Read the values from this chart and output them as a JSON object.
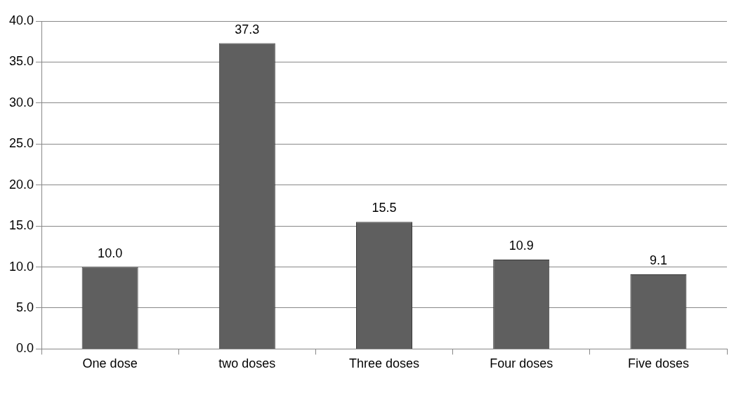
{
  "chart_data": {
    "type": "bar",
    "categories": [
      "One dose",
      "two doses",
      "Three doses",
      "Four doses",
      "Five doses"
    ],
    "values": [
      10.0,
      37.3,
      15.5,
      10.9,
      9.1
    ],
    "value_labels": [
      "10.0",
      "37.3",
      "15.5",
      "10.9",
      "9.1"
    ],
    "color": "#5f5f5f",
    "ylim": [
      0,
      40
    ],
    "yticks": [
      {
        "value": 0,
        "label": "0.0"
      },
      {
        "value": 5,
        "label": "5.0"
      },
      {
        "value": 10,
        "label": "10.0"
      },
      {
        "value": 15,
        "label": "15.0"
      },
      {
        "value": 20,
        "label": "20.0"
      },
      {
        "value": 25,
        "label": "25.0"
      },
      {
        "value": 30,
        "label": "30.0"
      },
      {
        "value": 35,
        "label": "35.0"
      },
      {
        "value": 40,
        "label": "40.0"
      }
    ],
    "grid": "y",
    "legend": false
  }
}
